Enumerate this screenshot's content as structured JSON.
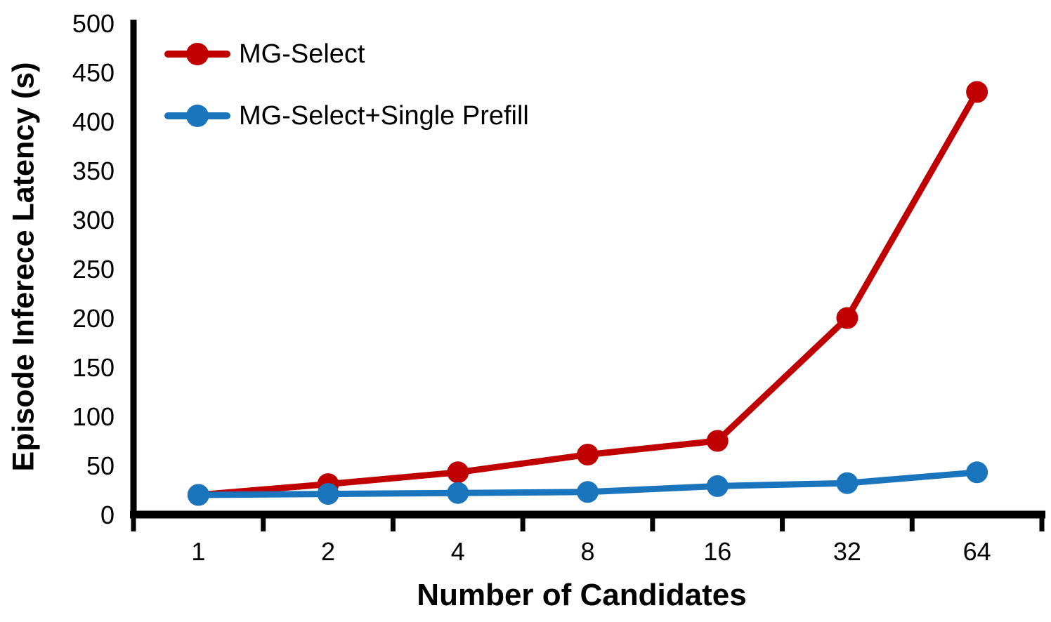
{
  "chart_data": {
    "type": "line",
    "title": "",
    "xlabel": "Number of Candidates",
    "ylabel": "Episode Inferece Latency (s)",
    "categories": [
      "1",
      "2",
      "4",
      "8",
      "16",
      "32",
      "64"
    ],
    "yticks": [
      0,
      50,
      100,
      150,
      200,
      250,
      300,
      350,
      400,
      450,
      500
    ],
    "ylim": [
      0,
      500
    ],
    "grid": false,
    "legend_position": "top-left",
    "series": [
      {
        "name": "MG-Select",
        "color": "#C00000",
        "marker": "circle",
        "values": [
          20,
          31,
          43,
          61,
          75,
          200,
          430
        ]
      },
      {
        "name": "MG-Select+Single Prefill",
        "color": "#1B75BC",
        "marker": "circle",
        "values": [
          20,
          21,
          22,
          23,
          29,
          32,
          43
        ]
      }
    ]
  },
  "colors": {
    "axis": "#000000",
    "text": "#000000",
    "background": "#FFFFFF"
  }
}
